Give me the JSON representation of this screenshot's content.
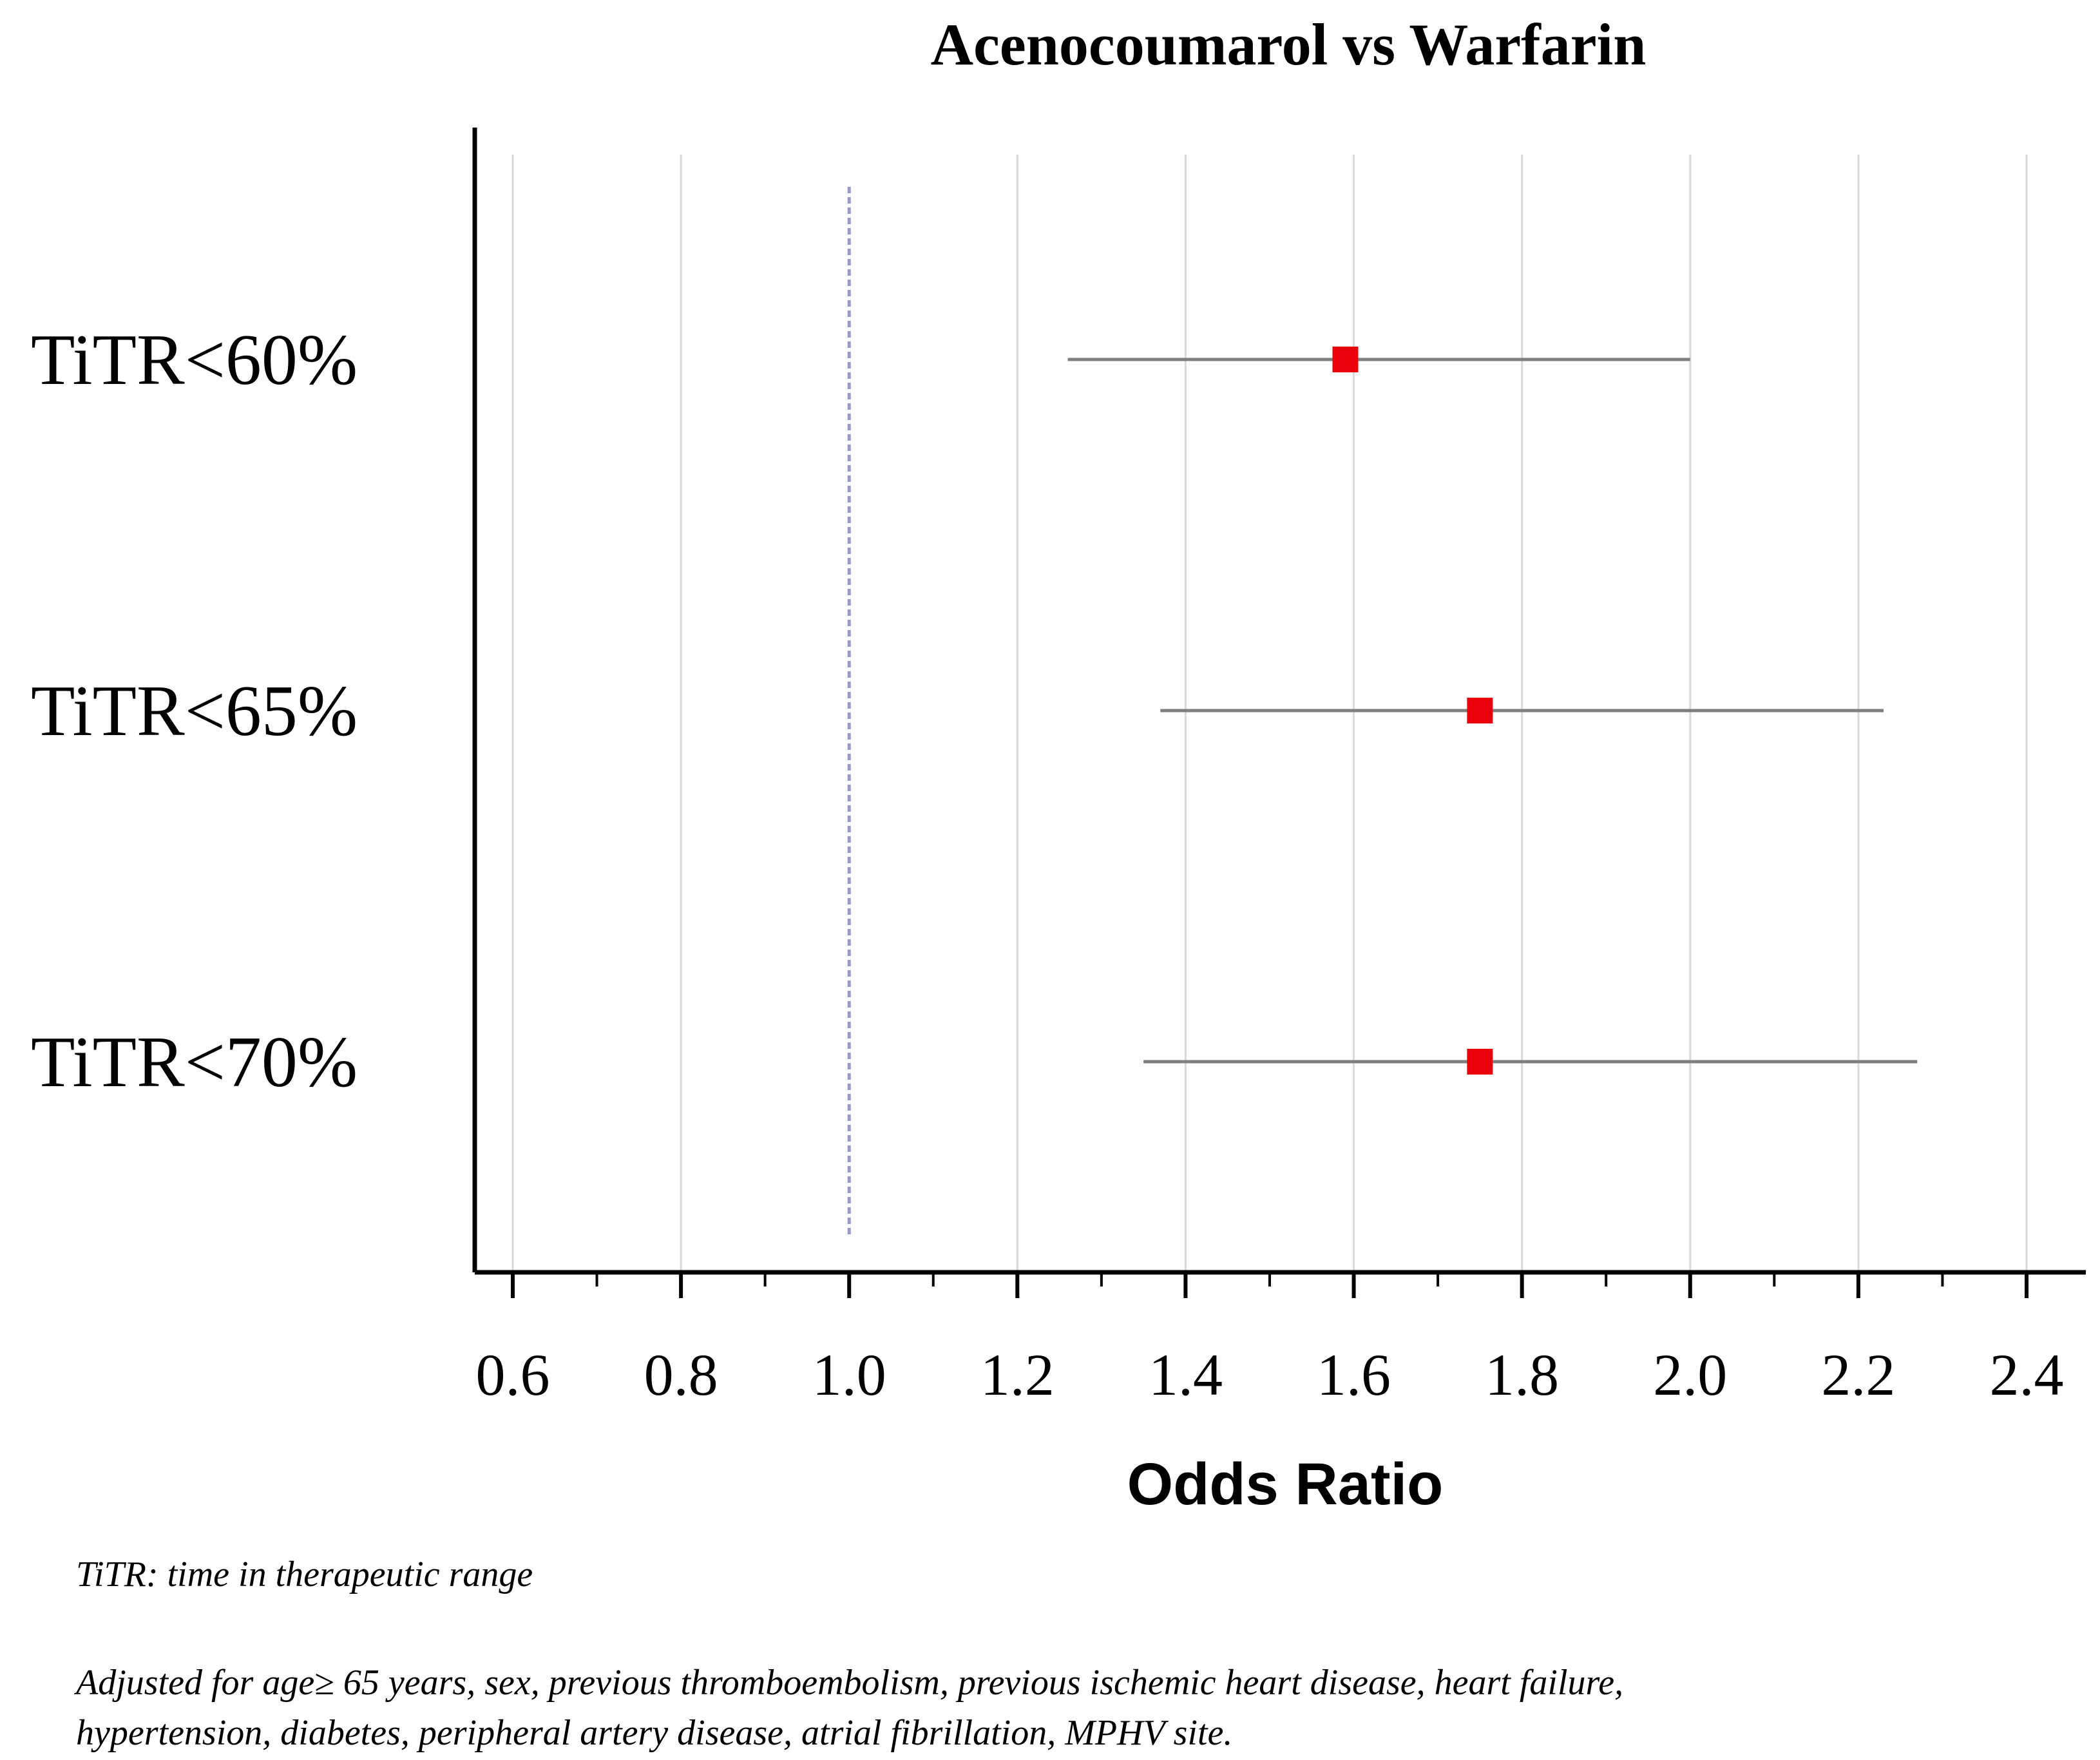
{
  "chart_data": {
    "type": "forest",
    "title": "Acenocoumarol vs Warfarin",
    "xlabel": "Odds Ratio",
    "ylabel": "",
    "xlim": [
      0.55,
      2.47
    ],
    "xticks": [
      0.6,
      0.8,
      1.0,
      1.2,
      1.4,
      1.6,
      1.8,
      2.0,
      2.2,
      2.4
    ],
    "xtick_labels": [
      "0.6",
      "0.8",
      "1.0",
      "1.2",
      "1.4",
      "1.6",
      "1.8",
      "2.0",
      "2.2",
      "2.4"
    ],
    "minor_tick_step": 0.1,
    "reference_line": 1.0,
    "grid": true,
    "categories": [
      "TiTR<60%",
      "TiTR<65%",
      "TiTR<70%"
    ],
    "estimates": [
      1.59,
      1.75,
      1.75
    ],
    "ci_lower": [
      1.26,
      1.37,
      1.35
    ],
    "ci_upper": [
      2.0,
      2.23,
      2.27
    ],
    "colors": {
      "marker": "#e8000b",
      "ci_line": "#7f7f7f",
      "grid": "#d9d9d9",
      "reference": "#9999cc",
      "axis": "#000000"
    }
  },
  "footnotes": {
    "abbreviation": "TiTR: time in therapeutic range",
    "adjusted_line1": "Adjusted for age≥ 65 years, sex, previous thromboembolism, previous ischemic heart disease, heart failure,",
    "adjusted_line2": "hypertension, diabetes, peripheral artery disease, atrial fibrillation, MPHV site."
  }
}
